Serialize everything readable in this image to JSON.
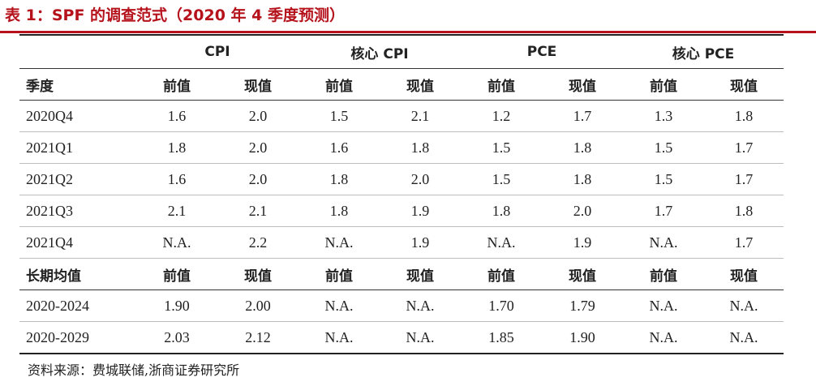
{
  "title": "表 1：SPF 的调查范式（2020 年 4 季度预测）",
  "groups": [
    "CPI",
    "核心 CPI",
    "PCE",
    "核心 PCE"
  ],
  "header": {
    "first": "季度",
    "cells": [
      "前值",
      "现值",
      "前值",
      "现值",
      "前值",
      "现值",
      "前值",
      "现值"
    ]
  },
  "rows": [
    {
      "label": "2020Q4",
      "values": [
        "1.6",
        "2.0",
        "1.5",
        "2.1",
        "1.2",
        "1.7",
        "1.3",
        "1.8"
      ]
    },
    {
      "label": "2021Q1",
      "values": [
        "1.8",
        "2.0",
        "1.6",
        "1.8",
        "1.5",
        "1.8",
        "1.5",
        "1.7"
      ]
    },
    {
      "label": "2021Q2",
      "values": [
        "1.6",
        "2.0",
        "1.8",
        "2.0",
        "1.5",
        "1.8",
        "1.5",
        "1.7"
      ]
    },
    {
      "label": "2021Q3",
      "values": [
        "2.1",
        "2.1",
        "1.8",
        "1.9",
        "1.8",
        "2.0",
        "1.7",
        "1.8"
      ]
    },
    {
      "label": "2021Q4",
      "values": [
        "N.A.",
        "2.2",
        "N.A.",
        "1.9",
        "N.A.",
        "1.9",
        "N.A.",
        "1.7"
      ]
    }
  ],
  "longterm_header": {
    "first": "长期均值",
    "cells": [
      "前值",
      "现值",
      "前值",
      "现值",
      "前值",
      "现值",
      "前值",
      "现值"
    ]
  },
  "longterm_rows": [
    {
      "label": "2020-2024",
      "values": [
        "1.90",
        "2.00",
        "N.A.",
        "N.A.",
        "1.70",
        "1.79",
        "N.A.",
        "N.A."
      ]
    },
    {
      "label": "2020-2029",
      "values": [
        "2.03",
        "2.12",
        "N.A.",
        "N.A.",
        "1.85",
        "1.90",
        "N.A.",
        "N.A."
      ]
    }
  ],
  "source": "资料来源：费城联储,浙商证券研究所",
  "colors": {
    "accent": "#b5121b"
  }
}
